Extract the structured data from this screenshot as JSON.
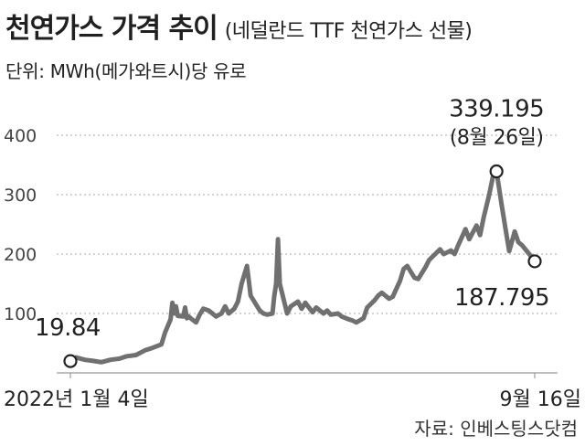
{
  "header": {
    "title": "천연가스 가격 추이",
    "subtitle": "(네덜란드 TTF 천연가스 선물)",
    "unit": "단위: MWh(메가와트시)당 유로"
  },
  "source": "자료: 인베스팅스닷컴",
  "colors": {
    "line": "#707070",
    "grid": "#aaaaaa",
    "axis": "#999999",
    "text": "#222222",
    "marker_fill": "#ffffff",
    "marker_stroke": "#222222"
  },
  "chart_data": {
    "type": "line",
    "title": "천연가스 가격 추이",
    "ylabel": "",
    "xlabel": "",
    "ylim": [
      0,
      400
    ],
    "yticks": [
      100,
      200,
      300,
      400
    ],
    "grid": "horizontal dotted",
    "x_tick_labels": [
      "2022년 1월 4일",
      "9월 16일"
    ],
    "x_range": [
      "2022-01-04",
      "2022-09-16"
    ],
    "series": [
      {
        "x": [
          "2022-01-04",
          "2022-01-07",
          "2022-01-12",
          "2022-01-17",
          "2022-01-21",
          "2022-01-26",
          "2022-01-31",
          "2022-02-04",
          "2022-02-09",
          "2022-02-14",
          "2022-02-18",
          "2022-02-23",
          "2022-02-25",
          "2022-02-28",
          "2022-03-01",
          "2022-03-02",
          "2022-03-03",
          "2022-03-04",
          "2022-03-07",
          "2022-03-08",
          "2022-03-09",
          "2022-03-10",
          "2022-03-11",
          "2022-03-14",
          "2022-03-16",
          "2022-03-18",
          "2022-03-21",
          "2022-03-23",
          "2022-03-25",
          "2022-03-28",
          "2022-03-30",
          "2022-04-01",
          "2022-04-04",
          "2022-04-06",
          "2022-04-08",
          "2022-04-11",
          "2022-04-13",
          "2022-04-18",
          "2022-04-20",
          "2022-04-22",
          "2022-04-25",
          "2022-04-26",
          "2022-04-27",
          "2022-04-28",
          "2022-04-29",
          "2022-05-03",
          "2022-05-05",
          "2022-05-09",
          "2022-05-11",
          "2022-05-13",
          "2022-05-17",
          "2022-05-19",
          "2022-05-23",
          "2022-05-25",
          "2022-05-27",
          "2022-05-31",
          "2022-06-02",
          "2022-06-06",
          "2022-06-08",
          "2022-06-10",
          "2022-06-14",
          "2022-06-16",
          "2022-06-20",
          "2022-06-22",
          "2022-06-24",
          "2022-06-28",
          "2022-06-30",
          "2022-07-04",
          "2022-07-06",
          "2022-07-08",
          "2022-07-12",
          "2022-07-14",
          "2022-07-18",
          "2022-07-20",
          "2022-07-22",
          "2022-07-26",
          "2022-07-28",
          "2022-08-01",
          "2022-08-03",
          "2022-08-05",
          "2022-08-09",
          "2022-08-11",
          "2022-08-15",
          "2022-08-17",
          "2022-08-19",
          "2022-08-22",
          "2022-08-24",
          "2022-08-26",
          "2022-08-29",
          "2022-08-31",
          "2022-09-02",
          "2022-09-05",
          "2022-09-07",
          "2022-09-09",
          "2022-09-13",
          "2022-09-16"
        ],
        "y": [
          19.84,
          26,
          22,
          20,
          18,
          22,
          24,
          28,
          30,
          38,
          42,
          48,
          68,
          90,
          118,
          100,
          112,
          96,
          95,
          110,
          92,
          95,
          92,
          85,
          98,
          108,
          105,
          100,
          95,
          100,
          112,
          100,
          108,
          120,
          150,
          180,
          130,
          105,
          100,
          98,
          100,
          130,
          150,
          225,
          150,
          100,
          112,
          120,
          108,
          118,
          102,
          110,
          100,
          105,
          98,
          100,
          95,
          90,
          88,
          85,
          92,
          110,
          122,
          130,
          135,
          125,
          128,
          155,
          175,
          180,
          160,
          158,
          178,
          190,
          196,
          208,
          200,
          206,
          200,
          215,
          242,
          225,
          248,
          232,
          262,
          300,
          330,
          339.195,
          280,
          242,
          205,
          238,
          220,
          215,
          200,
          187.795
        ]
      }
    ],
    "annotations": [
      {
        "label": "19.84",
        "x": "2022-01-04",
        "y": 19.84
      },
      {
        "label": "339.195",
        "sublabel": "(8월 26일)",
        "x": "2022-08-26",
        "y": 339.195
      },
      {
        "label": "187.795",
        "x": "2022-09-16",
        "y": 187.795
      }
    ]
  }
}
